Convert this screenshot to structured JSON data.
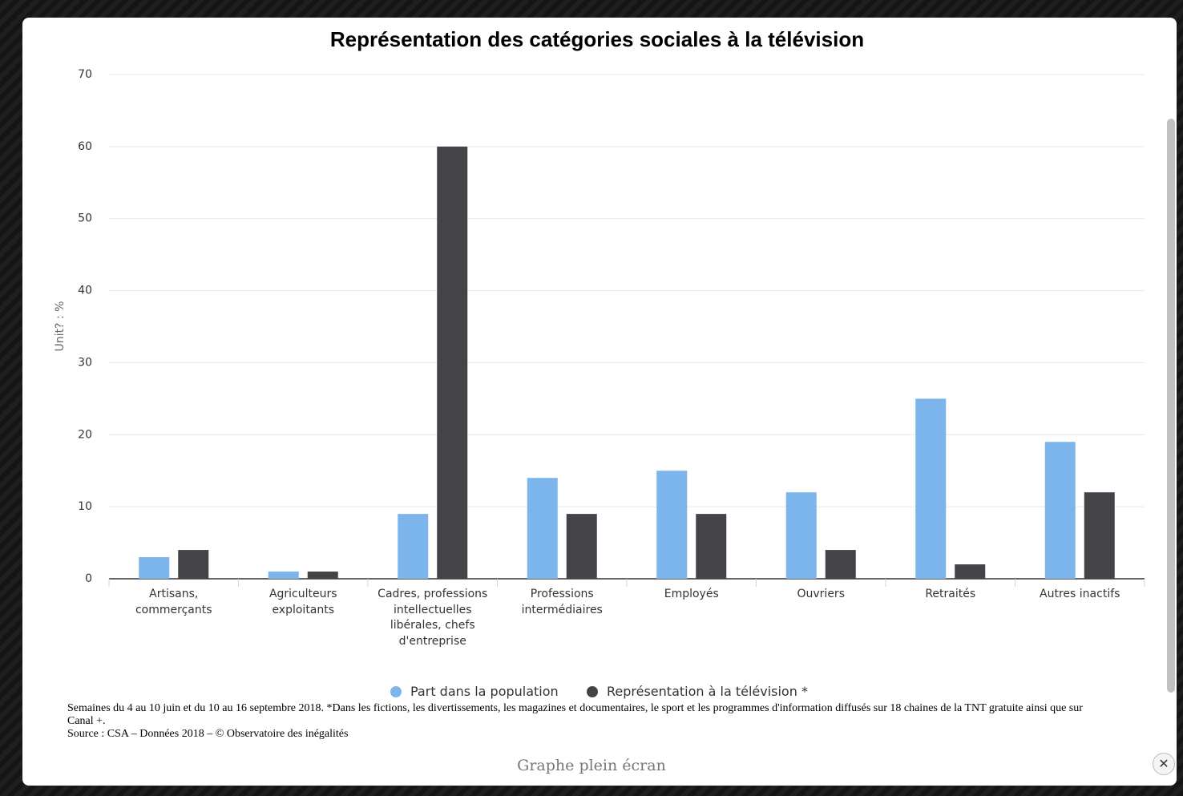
{
  "chart_data": {
    "type": "bar",
    "title": "Représentation des catégories sociales à la télévision",
    "ylabel": "Unit? : %",
    "categories": [
      "Artisans, commerçants",
      "Agriculteurs exploitants",
      "Cadres, professions intellectuelles libérales, chefs d'entreprise",
      "Professions intermédiaires",
      "Employés",
      "Ouvriers",
      "Retraités",
      "Autres inactifs"
    ],
    "series": [
      {
        "name": "Part dans la population",
        "color": "#7cb5ec",
        "values": [
          3,
          1,
          9,
          14,
          15,
          12,
          25,
          19
        ]
      },
      {
        "name": "Représentation à la télévision *",
        "color": "#434348",
        "values": [
          4,
          1,
          60,
          9,
          9,
          4,
          2,
          12
        ]
      }
    ],
    "ylim": [
      0,
      70
    ],
    "yticks": [
      0,
      10,
      20,
      30,
      40,
      50,
      60,
      70
    ],
    "grid": true,
    "notes": [
      "Semaines du 4 au 10 juin et du 10 au 16 septembre 2018. *Dans les fictions, les divertissements, les magazines et documentaires, le sport et les programmes d'information diffusés sur 18 chaines de la TNT gratuite ainsi que sur Canal +.",
      "Source : CSA – Données 2018 – © Observatoire des inégalités"
    ]
  },
  "modal": {
    "caption": "Graphe plein écran"
  }
}
